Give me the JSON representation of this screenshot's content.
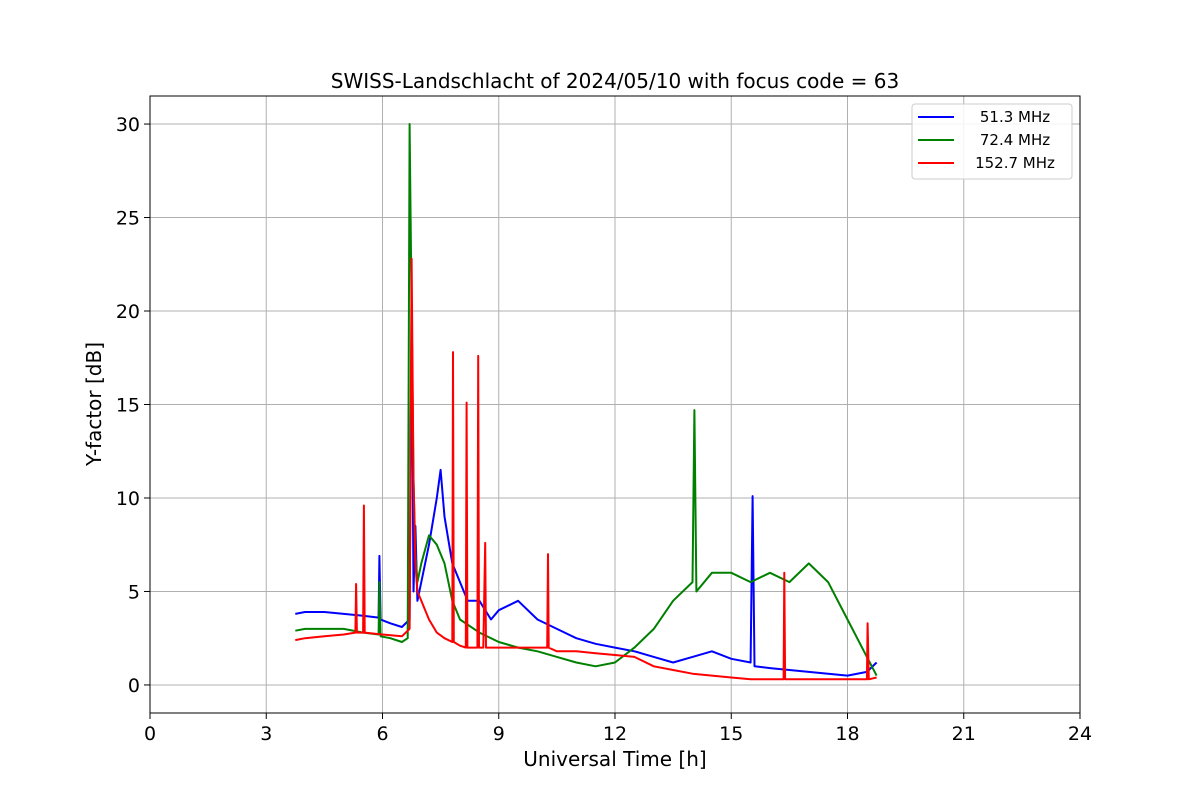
{
  "chart_data": {
    "type": "line",
    "title": "SWISS-Landschlacht of 2024/05/10 with focus code = 63",
    "xlabel": "Universal Time [h]",
    "ylabel": "Y-factor [dB]",
    "xlim": [
      0,
      24
    ],
    "ylim": [
      -1.5,
      31.5
    ],
    "xticks": [
      0,
      3,
      6,
      9,
      12,
      15,
      18,
      21,
      24
    ],
    "yticks": [
      0,
      5,
      10,
      15,
      20,
      25,
      30
    ],
    "grid": true,
    "legend_position": "top-right",
    "series": [
      {
        "name": "51.3 MHz",
        "color": "#0000ff",
        "x": [
          3.75,
          4.0,
          4.5,
          5.0,
          5.5,
          5.9,
          5.92,
          5.95,
          6.2,
          6.5,
          6.7,
          6.75,
          6.8,
          6.85,
          6.9,
          7.0,
          7.2,
          7.4,
          7.5,
          7.6,
          7.8,
          8.0,
          8.2,
          8.5,
          8.8,
          9.0,
          9.5,
          10.0,
          10.5,
          11.0,
          11.5,
          12.0,
          12.5,
          13.0,
          13.5,
          14.0,
          14.5,
          15.0,
          15.5,
          15.55,
          15.6,
          16.0,
          16.5,
          17.0,
          17.5,
          18.0,
          18.5,
          18.75
        ],
        "y": [
          3.8,
          3.9,
          3.9,
          3.8,
          3.7,
          3.6,
          6.9,
          3.5,
          3.3,
          3.1,
          3.5,
          20.3,
          5.0,
          8.5,
          4.5,
          5.5,
          7.5,
          10.0,
          11.5,
          9.0,
          6.5,
          5.5,
          4.5,
          4.5,
          3.5,
          4.0,
          4.5,
          3.5,
          3.0,
          2.5,
          2.2,
          2.0,
          1.8,
          1.5,
          1.2,
          1.5,
          1.8,
          1.4,
          1.2,
          10.1,
          1.0,
          0.9,
          0.8,
          0.7,
          0.6,
          0.5,
          0.7,
          1.2
        ]
      },
      {
        "name": "72.4 MHz",
        "color": "#008000",
        "x": [
          3.75,
          4.0,
          4.5,
          5.0,
          5.5,
          5.9,
          5.92,
          5.95,
          6.2,
          6.5,
          6.65,
          6.7,
          6.75,
          6.8,
          6.85,
          6.9,
          7.0,
          7.2,
          7.4,
          7.6,
          7.8,
          8.0,
          8.5,
          9.0,
          9.5,
          10.0,
          10.5,
          11.0,
          11.5,
          12.0,
          12.5,
          13.0,
          13.5,
          14.0,
          14.05,
          14.1,
          14.5,
          15.0,
          15.5,
          16.0,
          16.5,
          17.0,
          17.5,
          18.0,
          18.5,
          18.75
        ],
        "y": [
          2.9,
          3.0,
          3.0,
          3.0,
          2.8,
          2.7,
          5.5,
          2.6,
          2.5,
          2.3,
          2.5,
          30.0,
          20.0,
          11.0,
          7.0,
          5.5,
          6.5,
          8.0,
          7.5,
          6.5,
          4.5,
          3.5,
          2.8,
          2.3,
          2.0,
          1.8,
          1.5,
          1.2,
          1.0,
          1.2,
          2.0,
          3.0,
          4.5,
          5.5,
          14.7,
          5.0,
          6.0,
          6.0,
          5.5,
          6.0,
          5.5,
          6.5,
          5.5,
          3.5,
          1.5,
          0.5
        ]
      },
      {
        "name": "152.7 MHz",
        "color": "#ff0000",
        "x": [
          3.75,
          4.0,
          4.5,
          5.0,
          5.3,
          5.32,
          5.34,
          5.5,
          5.52,
          5.54,
          6.0,
          6.5,
          6.7,
          6.75,
          6.8,
          6.85,
          6.9,
          7.0,
          7.2,
          7.4,
          7.6,
          7.8,
          7.82,
          7.84,
          8.0,
          8.15,
          8.17,
          8.19,
          8.3,
          8.45,
          8.47,
          8.49,
          8.6,
          8.65,
          8.67,
          9.0,
          9.5,
          10.0,
          10.25,
          10.27,
          10.29,
          10.5,
          11.0,
          11.5,
          12.0,
          12.5,
          13.0,
          13.5,
          14.0,
          14.5,
          15.0,
          15.5,
          16.0,
          16.35,
          16.37,
          16.39,
          16.8,
          17.0,
          17.5,
          18.0,
          18.5,
          18.52,
          18.55,
          18.75
        ],
        "y": [
          2.4,
          2.5,
          2.6,
          2.7,
          2.8,
          5.4,
          2.8,
          2.8,
          9.6,
          2.8,
          2.7,
          2.6,
          3.0,
          22.8,
          11.0,
          6.5,
          5.0,
          4.5,
          3.5,
          2.8,
          2.5,
          2.3,
          17.8,
          2.3,
          2.1,
          2.0,
          15.1,
          2.0,
          2.0,
          2.0,
          17.6,
          2.0,
          2.0,
          7.6,
          2.0,
          2.0,
          2.0,
          2.0,
          2.0,
          7.0,
          2.0,
          1.8,
          1.8,
          1.7,
          1.6,
          1.5,
          1.0,
          0.8,
          0.6,
          0.5,
          0.4,
          0.3,
          0.3,
          0.3,
          6.0,
          0.3,
          0.3,
          0.3,
          0.3,
          0.3,
          0.3,
          3.3,
          0.3,
          0.4
        ]
      }
    ]
  }
}
